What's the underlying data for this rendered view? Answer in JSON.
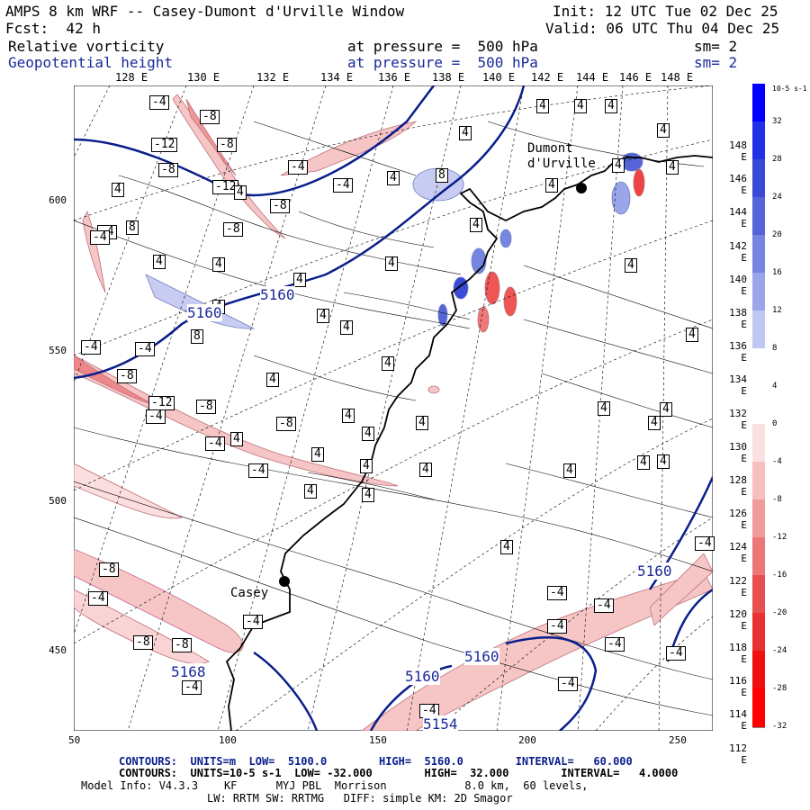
{
  "header": {
    "title": "AMPS 8 km WRF -- Casey-Dumont d'Urville Window",
    "init": "Init: 12 UTC Tue 02 Dec 25",
    "fcst": "Fcst:  42 h",
    "valid": "Valid: 06 UTC Thu 04 Dec 25",
    "field1": "Relative vorticity",
    "field1_level": "at pressure =  500 hPa",
    "field1_sm": "sm= 2",
    "field2": "Geopotential height",
    "field2_level": "at pressure =  500 hPa",
    "field2_sm": "sm= 2"
  },
  "top_longitudes": [
    "128 E",
    "130 E",
    "132 E",
    "134 E",
    "136 E",
    "138 E",
    "140 E",
    "142 E",
    "144 E",
    "146 E",
    "148 E"
  ],
  "right_longitudes": [
    "148 E",
    "146 E",
    "144 E",
    "142 E",
    "140 E",
    "138 E",
    "136 E",
    "134 E",
    "132 E",
    "130 E",
    "128 E",
    "126 E",
    "124 E",
    "122 E",
    "120 E",
    "118 E",
    "116 E",
    "114 E",
    "112 E"
  ],
  "y_ticks": [
    "600",
    "550",
    "500",
    "450"
  ],
  "x_ticks": [
    "50",
    "100",
    "150",
    "200",
    "250"
  ],
  "colorbar": {
    "unit_label": "10-5 s-1",
    "labels": [
      "32",
      "28",
      "24",
      "20",
      "16",
      "12",
      "8",
      "4",
      "0",
      "-4",
      "-8",
      "-12",
      "-16",
      "-20",
      "-24",
      "-28",
      "-32"
    ],
    "colors": [
      "#0000ff",
      "#2030e6",
      "#3a4ad6",
      "#5565d8",
      "#7585e0",
      "#9aa5ea",
      "#c0c8f2",
      "#ffffff",
      "#ffffff",
      "#fbe0e0",
      "#f7bfbf",
      "#f19c9c",
      "#ec7777",
      "#e85050",
      "#e83030",
      "#f01010",
      "#ff0000"
    ]
  },
  "places": {
    "dumont": "Dumont\nd'Urville",
    "casey": "Casey"
  },
  "height_labels": [
    "5160",
    "5160",
    "5160",
    "5160",
    "5160",
    "5168",
    "5154"
  ],
  "vort_labels": {
    "neg": [
      "-4",
      "-8",
      "-12",
      "-8",
      "-8",
      "-4",
      "-12",
      "-8",
      "-8",
      "-4",
      "-4",
      "-4",
      "-8",
      "-12",
      "-8",
      "-8",
      "-4",
      "-4",
      "-4",
      "-4",
      "-8",
      "-4",
      "-4",
      "-8",
      "-8",
      "-4",
      "-4",
      "-4",
      "-4",
      "-4",
      "-4",
      "-4",
      "-4",
      "-4",
      "-4"
    ],
    "pos": [
      "4",
      "8",
      "4",
      "4",
      "8",
      "4",
      "4",
      "4",
      "8",
      "4",
      "4",
      "4",
      "4",
      "4",
      "4",
      "4",
      "4",
      "4",
      "4",
      "4",
      "4",
      "4",
      "4",
      "4",
      "4",
      "4",
      "4",
      "4",
      "4",
      "4",
      "4",
      "4",
      "4",
      "4",
      "4",
      "4",
      "4",
      "4",
      "4",
      "4",
      "4",
      "4"
    ]
  },
  "footer": {
    "line1_a": "CONTOURS:  UNITS=m  LOW=  5100.0        HIGH=  5160.0        INTERVAL=   60.000",
    "line2_a": "CONTOURS:  UNITS=10-5 s-1  LOW= -32.000        HIGH=  32.000        INTERVAL=   4.0000",
    "line3": "Model Info: V4.3.3    KF      MYJ PBL  Morrison            8.0 km,  60 levels,",
    "line4": "LW: RRTM SW: RRTMG   DIFF: simple KM: 2D Smagor"
  },
  "colors": {
    "height_contour": "#0a1e8c",
    "coast": "#000000",
    "neg_fill": "#f4b8b8",
    "pos_fill": "#c8ccf2"
  }
}
